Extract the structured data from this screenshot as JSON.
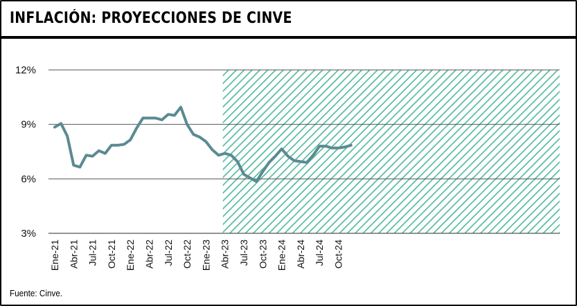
{
  "title": "INFLACIÓN: PROYECCIONES DE CINVE",
  "source": "Fuente: Cinve.",
  "colors": {
    "line": "#5b8a92",
    "hatch": "#4bb89a",
    "grid": "#555555",
    "frame": "#000000"
  },
  "chart_data": {
    "type": "line",
    "title": "INFLACIÓN: PROYECCIONES DE CINVE",
    "xlabel": "",
    "ylabel": "",
    "ylim": [
      3,
      12
    ],
    "y_ticks": [
      "3%",
      "6%",
      "9%",
      "12%"
    ],
    "y_tick_values": [
      3,
      6,
      9,
      12
    ],
    "x_tick_labels": [
      "Ene-21",
      "Abr-21",
      "Jul-21",
      "Oct-21",
      "Ene-22",
      "Abr-22",
      "Jul-22",
      "Oct-22",
      "Ene-23",
      "Abr-23",
      "Jul-23",
      "Oct-23",
      "Ene-24",
      "Abr-24",
      "Jul-24",
      "Oct-24"
    ],
    "grid": true,
    "projection_start": "Abr-23",
    "x": [
      "Ene-21",
      "Feb-21",
      "Mar-21",
      "Abr-21",
      "May-21",
      "Jun-21",
      "Jul-21",
      "Ago-21",
      "Sep-21",
      "Oct-21",
      "Nov-21",
      "Dic-21",
      "Ene-22",
      "Feb-22",
      "Mar-22",
      "Abr-22",
      "May-22",
      "Jun-22",
      "Jul-22",
      "Ago-22",
      "Sep-22",
      "Oct-22",
      "Nov-22",
      "Dic-22",
      "Ene-23",
      "Feb-23",
      "Mar-23",
      "Abr-23",
      "May-23",
      "Jun-23",
      "Jul-23",
      "Ago-23",
      "Sep-23",
      "Oct-23",
      "Nov-23",
      "Dic-23",
      "Ene-24",
      "Feb-24",
      "Mar-24",
      "Abr-24",
      "May-24",
      "Jun-24",
      "Jul-24",
      "Ago-24",
      "Sep-24",
      "Oct-24",
      "Nov-24",
      "Dic-24"
    ],
    "series": [
      {
        "values": [
          8.85,
          9.05,
          8.35,
          6.75,
          6.65,
          7.3,
          7.25,
          7.55,
          7.4,
          7.85,
          7.85,
          7.9,
          8.15,
          8.8,
          9.35,
          9.35,
          9.35,
          9.25,
          9.55,
          9.5,
          9.95,
          9.0,
          8.45,
          8.3,
          8.05,
          7.6,
          7.3,
          7.4,
          7.3,
          6.95,
          6.25,
          6.05,
          5.85,
          6.4,
          6.9,
          7.25,
          7.65,
          7.25,
          7.0,
          6.95,
          6.9,
          7.3,
          7.8,
          7.8,
          7.7,
          7.7,
          7.75,
          7.85
        ]
      }
    ]
  }
}
